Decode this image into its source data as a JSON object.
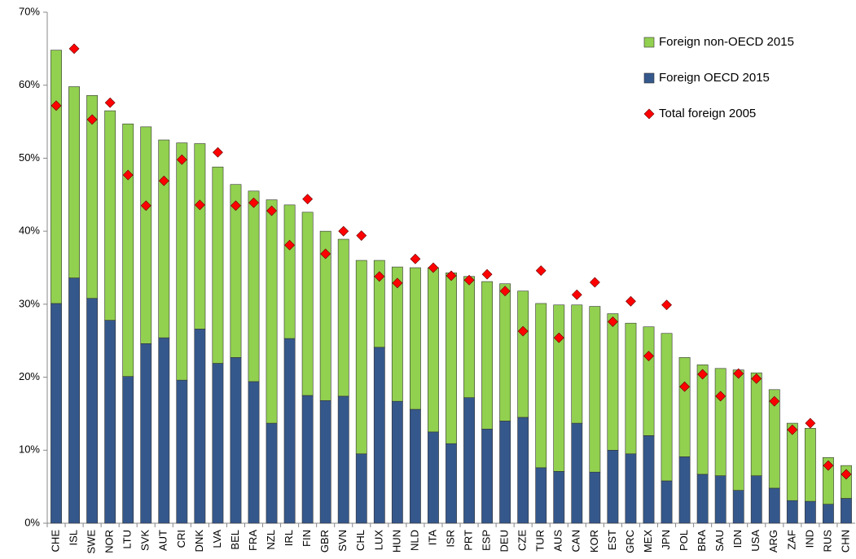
{
  "chart_data": {
    "type": "bar",
    "stacked": true,
    "categories": [
      "CHE",
      "ISL",
      "SWE",
      "NOR",
      "LTU",
      "SVK",
      "AUT",
      "CRI",
      "DNK",
      "LVA",
      "BEL",
      "FRA",
      "NZL",
      "IRL",
      "FIN",
      "GBR",
      "SVN",
      "CHL",
      "LUX",
      "HUN",
      "NLD",
      "ITA",
      "ISR",
      "PRT",
      "ESP",
      "DEU",
      "CZE",
      "TUR",
      "AUS",
      "CAN",
      "KOR",
      "EST",
      "GRC",
      "MEX",
      "JPN",
      "POL",
      "BRA",
      "SAU",
      "IDN",
      "USA",
      "ARG",
      "ZAF",
      "IND",
      "RUS",
      "CHN"
    ],
    "series": [
      {
        "name": "Foreign OECD 2015",
        "type": "bar",
        "color": "#35588c",
        "values": [
          30.1,
          33.6,
          30.8,
          27.8,
          20.1,
          24.6,
          25.4,
          19.6,
          26.6,
          21.9,
          22.7,
          19.4,
          13.7,
          25.3,
          17.5,
          16.8,
          17.4,
          9.5,
          24.1,
          16.7,
          15.6,
          12.5,
          10.9,
          17.2,
          12.9,
          14.0,
          14.5,
          7.6,
          7.1,
          13.7,
          7.0,
          10.0,
          9.5,
          12.0,
          5.8,
          9.1,
          6.7,
          6.5,
          4.5,
          6.5,
          4.8,
          3.1,
          3.0,
          2.6,
          3.4
        ]
      },
      {
        "name": "Foreign non-OECD 2015",
        "type": "bar",
        "color": "#92d050",
        "values": [
          34.7,
          26.2,
          27.8,
          28.7,
          34.6,
          29.7,
          27.1,
          32.5,
          25.4,
          26.9,
          23.7,
          26.1,
          30.6,
          18.3,
          25.1,
          23.2,
          21.5,
          26.5,
          11.9,
          18.4,
          19.4,
          22.5,
          23.4,
          16.6,
          20.2,
          18.8,
          17.3,
          22.5,
          22.8,
          16.2,
          22.7,
          18.7,
          17.9,
          14.9,
          20.2,
          13.6,
          15.0,
          14.7,
          16.5,
          14.1,
          13.5,
          10.6,
          10.0,
          6.4,
          4.5
        ]
      },
      {
        "name": "Total foreign 2005",
        "type": "scatter",
        "marker": "diamond",
        "color": "#ff0000",
        "values": [
          57.2,
          65.0,
          55.3,
          57.6,
          47.7,
          43.5,
          46.9,
          49.8,
          43.6,
          50.8,
          43.5,
          43.9,
          42.8,
          38.1,
          44.4,
          36.9,
          40.0,
          39.4,
          33.8,
          32.9,
          36.2,
          35.0,
          33.9,
          33.3,
          34.1,
          31.8,
          26.3,
          34.6,
          25.4,
          31.3,
          33.0,
          27.6,
          30.4,
          22.9,
          29.9,
          18.7,
          20.4,
          17.4,
          20.5,
          19.8,
          16.7,
          12.8,
          13.7,
          7.9,
          6.7
        ]
      }
    ],
    "ylim": [
      0,
      70
    ],
    "yticks": [
      {
        "value": 0,
        "label": "0%"
      },
      {
        "value": 10,
        "label": "10%"
      },
      {
        "value": 20,
        "label": "20%"
      },
      {
        "value": 30,
        "label": "30%"
      },
      {
        "value": 40,
        "label": "40%"
      },
      {
        "value": 50,
        "label": "50%"
      },
      {
        "value": 60,
        "label": "60%"
      },
      {
        "value": 70,
        "label": "70%"
      }
    ],
    "legend": "upper right"
  }
}
